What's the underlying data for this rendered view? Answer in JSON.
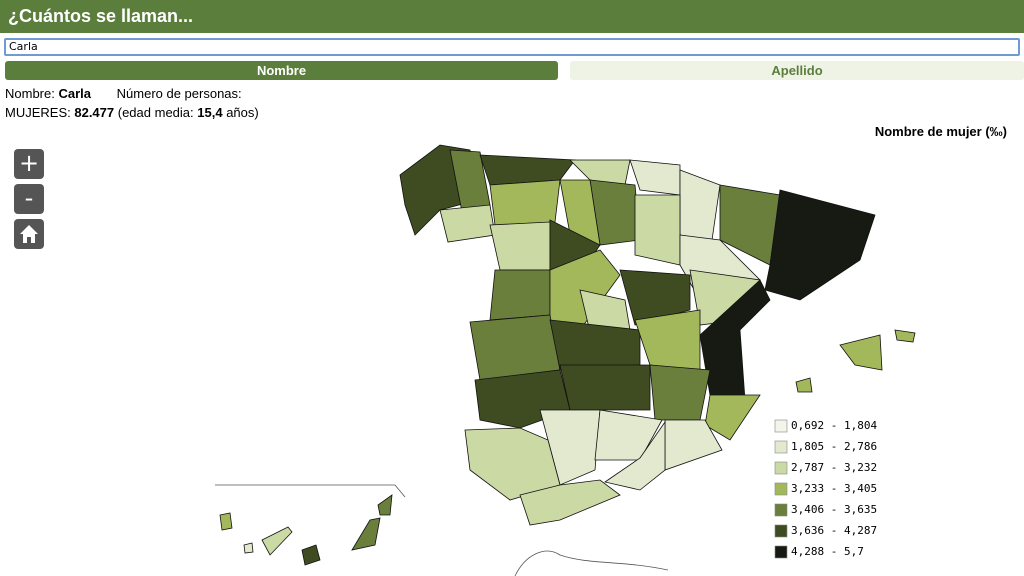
{
  "header": {
    "title": "¿Cuántos se llaman..."
  },
  "search": {
    "value": "Carla"
  },
  "tabs": [
    "Nombre",
    "Apellido"
  ],
  "info": {
    "name_label": "Nombre:",
    "name": "Carla",
    "count_label": "Número de personas:",
    "women_label": "MUJERES:",
    "women_count": "82.477",
    "age_prefix": "(edad media:",
    "age": "15,4",
    "age_suffix": "años)"
  },
  "map": {
    "title": "Nombre de mujer (‰)",
    "controls": [
      "+",
      "-"
    ],
    "legend": [
      {
        "label": "0,692 - 1,804",
        "color": "#f3f5ea"
      },
      {
        "label": "1,805 - 2,786",
        "color": "#e2e9cf"
      },
      {
        "label": "2,787 - 3,232",
        "color": "#cbd9a4"
      },
      {
        "label": "3,233 - 3,405",
        "color": "#a3b85a"
      },
      {
        "label": "3,406 - 3,635",
        "color": "#6b7f3c"
      },
      {
        "label": "3,636 - 4,287",
        "color": "#3f4c22"
      },
      {
        "label": "4,288 - 5,7",
        "color": "#161a12"
      }
    ]
  }
}
